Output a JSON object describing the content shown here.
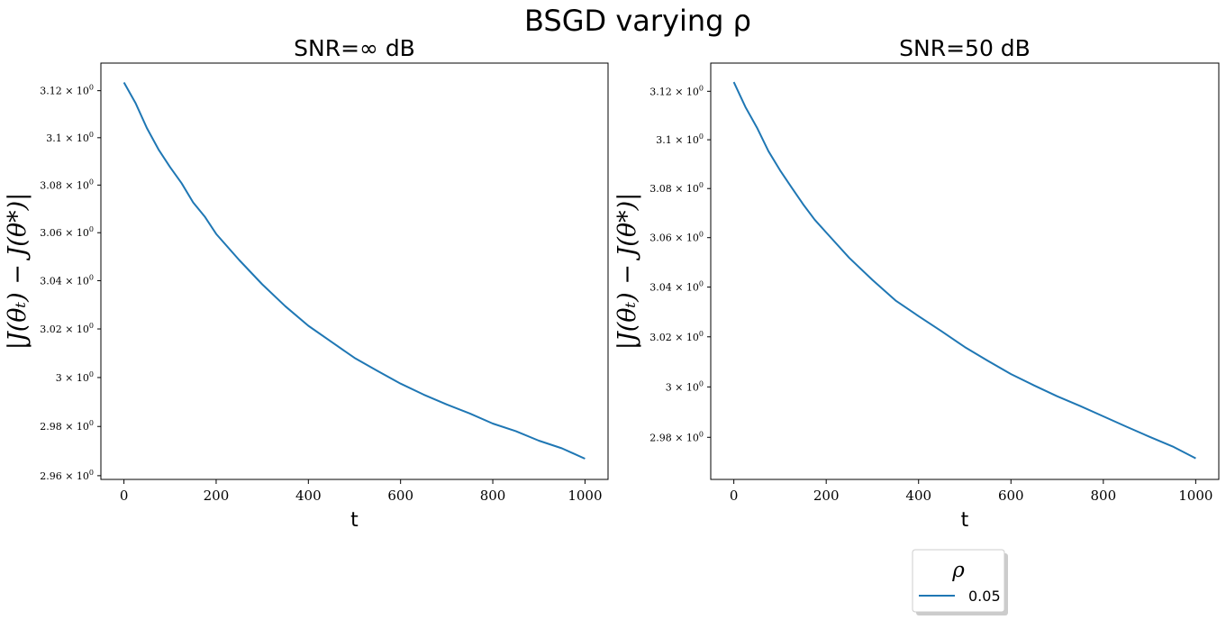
{
  "suptitle": "BSGD varying ρ",
  "legend": {
    "title": "ρ",
    "placement": "below-right-axes",
    "entries": [
      {
        "label": "0.05",
        "color": "#1f77b4"
      }
    ]
  },
  "chart_data": [
    {
      "type": "line",
      "title": "SNR=∞ dB",
      "xlabel": "t",
      "ylabel": "|J(θₜ) − J(θ*)|",
      "yscale": "log",
      "xlim": [
        -50,
        1050
      ],
      "ylim": [
        2.9585,
        3.1318
      ],
      "xticks": [
        0,
        200,
        400,
        600,
        800,
        1000
      ],
      "yticks": [
        {
          "value": 2.96,
          "mantissa": "2.96",
          "exp": "0"
        },
        {
          "value": 2.98,
          "mantissa": "2.98",
          "exp": "0"
        },
        {
          "value": 3.0,
          "mantissa": "3",
          "exp": "0"
        },
        {
          "value": 3.02,
          "mantissa": "3.02",
          "exp": "0"
        },
        {
          "value": 3.04,
          "mantissa": "3.04",
          "exp": "0"
        },
        {
          "value": 3.06,
          "mantissa": "3.06",
          "exp": "0"
        },
        {
          "value": 3.08,
          "mantissa": "3.08",
          "exp": "0"
        },
        {
          "value": 3.1,
          "mantissa": "3.1",
          "exp": "0"
        },
        {
          "value": 3.12,
          "mantissa": "3.12",
          "exp": "0"
        }
      ],
      "grid": false,
      "series": [
        {
          "name": "0.05",
          "color": "#1f77b4",
          "x": [
            0,
            25,
            50,
            75,
            100,
            125,
            150,
            175,
            200,
            250,
            300,
            350,
            400,
            450,
            500,
            550,
            600,
            650,
            700,
            750,
            800,
            850,
            900,
            950,
            1000
          ],
          "y": [
            3.1235,
            3.1148,
            3.104,
            3.095,
            3.0876,
            3.0808,
            3.0727,
            3.0668,
            3.0595,
            3.0486,
            3.0385,
            3.0294,
            3.0213,
            3.0147,
            3.0081,
            3.0027,
            2.9975,
            2.993,
            2.989,
            2.9853,
            2.9812,
            2.9781,
            2.9742,
            2.9711,
            2.9669
          ]
        }
      ]
    },
    {
      "type": "line",
      "title": "SNR=50 dB",
      "xlabel": "t",
      "ylabel": "|J(θₜ) − J(θ*)|",
      "yscale": "log",
      "xlim": [
        -50,
        1050
      ],
      "ylim": [
        2.9634,
        3.1317
      ],
      "xticks": [
        0,
        200,
        400,
        600,
        800,
        1000
      ],
      "yticks": [
        {
          "value": 2.98,
          "mantissa": "2.98",
          "exp": "0"
        },
        {
          "value": 3.0,
          "mantissa": "3",
          "exp": "0"
        },
        {
          "value": 3.02,
          "mantissa": "3.02",
          "exp": "0"
        },
        {
          "value": 3.04,
          "mantissa": "3.04",
          "exp": "0"
        },
        {
          "value": 3.06,
          "mantissa": "3.06",
          "exp": "0"
        },
        {
          "value": 3.08,
          "mantissa": "3.08",
          "exp": "0"
        },
        {
          "value": 3.1,
          "mantissa": "3.1",
          "exp": "0"
        },
        {
          "value": 3.12,
          "mantissa": "3.12",
          "exp": "0"
        }
      ],
      "grid": false,
      "series": [
        {
          "name": "0.05",
          "color": "#1f77b4",
          "x": [
            0,
            25,
            50,
            75,
            100,
            125,
            150,
            175,
            200,
            250,
            300,
            350,
            400,
            450,
            500,
            550,
            600,
            650,
            700,
            750,
            800,
            850,
            900,
            950,
            1000
          ],
          "y": [
            3.1238,
            3.1135,
            3.105,
            3.0953,
            3.0875,
            3.0805,
            3.0736,
            3.0673,
            3.0621,
            3.0518,
            3.0429,
            3.0346,
            3.0283,
            3.0222,
            3.0159,
            3.0104,
            3.0051,
            3.0006,
            2.9963,
            2.9924,
            2.9883,
            2.9842,
            2.9802,
            2.9764,
            2.9717
          ]
        }
      ]
    }
  ]
}
